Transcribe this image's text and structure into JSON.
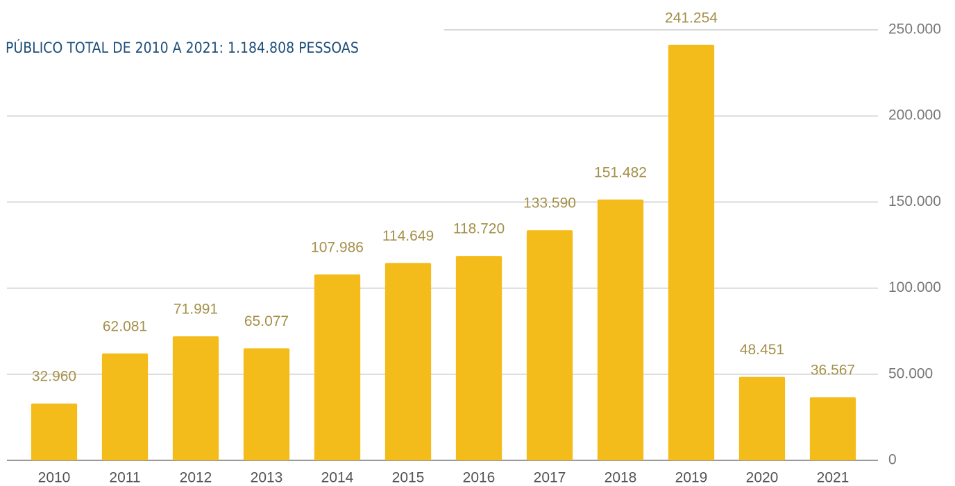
{
  "chart_data": {
    "type": "bar",
    "title": "PÚBLICO TOTAL DE 2010 A 2021: 1.184.808 PESSOAS",
    "categories": [
      "2010",
      "2011",
      "2012",
      "2013",
      "2014",
      "2015",
      "2016",
      "2017",
      "2018",
      "2019",
      "2020",
      "2021"
    ],
    "values": [
      32960,
      62081,
      71991,
      65077,
      107986,
      114649,
      118720,
      133590,
      151482,
      241254,
      48451,
      36567
    ],
    "value_labels": [
      "32.960",
      "62.081",
      "71.991",
      "65.077",
      "107.986",
      "114.649",
      "118.720",
      "133.590",
      "151.482",
      "241.254",
      "48.451",
      "36.567"
    ],
    "color": "#f4bc1a",
    "ylim": [
      0,
      250000
    ],
    "yticks": [
      0,
      {
        "value": 50000,
        "label": "50.000"
      },
      {
        "value": 100000,
        "label": "100.000"
      },
      {
        "value": 150000,
        "label": "150.000"
      },
      {
        "value": 200000,
        "label": "200.000"
      },
      {
        "value": 250000,
        "label": "250.000"
      }
    ],
    "grid": true
  }
}
